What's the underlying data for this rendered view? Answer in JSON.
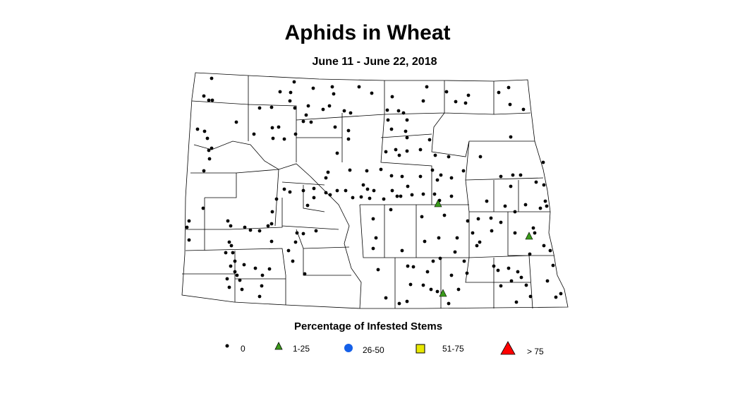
{
  "title": "Aphids in Wheat",
  "subtitle": "June 11 - June 22, 2018",
  "legend": {
    "title": "Percentage of Infested Stems",
    "items": [
      {
        "label": "0",
        "symbol": "small-dot",
        "color": "#000000"
      },
      {
        "label": "1-25",
        "symbol": "triangle",
        "color": "#3a9a1a"
      },
      {
        "label": "26-50",
        "symbol": "circle",
        "color": "#1560e8"
      },
      {
        "label": "51-75",
        "symbol": "square",
        "color": "#e8e800"
      },
      {
        "label": "> 75",
        "symbol": "large-triangle",
        "color": "#ff0000"
      }
    ]
  }
}
